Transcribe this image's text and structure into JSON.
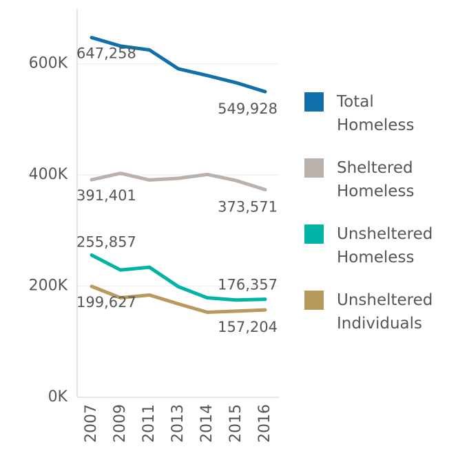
{
  "chart_data": {
    "type": "line",
    "categories": [
      "2007",
      "2009",
      "2011",
      "2013",
      "2014",
      "2015",
      "2016"
    ],
    "ylim": [
      0,
      700000
    ],
    "yticks": [
      {
        "value": 0,
        "label": "0K"
      },
      {
        "value": 200000,
        "label": "200K"
      },
      {
        "value": 400000,
        "label": "400K"
      },
      {
        "value": 600000,
        "label": "600K"
      }
    ],
    "grid": true,
    "series": [
      {
        "name": "Total Homeless",
        "color": "#1170aa",
        "values": [
          647258,
          632000,
          625000,
          591000,
          579000,
          566000,
          549928
        ],
        "value_labels": [
          "647,258",
          null,
          null,
          null,
          null,
          null,
          "549,928"
        ]
      },
      {
        "name": "Sheltered Homeless",
        "color": "#bab0ac",
        "values": [
          391401,
          403000,
          391000,
          394000,
          401000,
          390000,
          373571
        ],
        "value_labels": [
          "391,401",
          null,
          null,
          null,
          null,
          null,
          "373,571"
        ]
      },
      {
        "name": "Unsheltered Homeless",
        "color": "#00b3a4",
        "values": [
          255857,
          229000,
          234000,
          199000,
          179000,
          175000,
          176357
        ],
        "value_labels": [
          "255,857",
          null,
          null,
          null,
          null,
          null,
          "176,357"
        ]
      },
      {
        "name": "Unsheltered Individuals",
        "color": "#b99a5e",
        "values": [
          199627,
          179000,
          184000,
          168000,
          153000,
          155000,
          157204
        ],
        "value_labels": [
          "199,627",
          null,
          null,
          null,
          null,
          null,
          "157,204"
        ]
      }
    ]
  }
}
